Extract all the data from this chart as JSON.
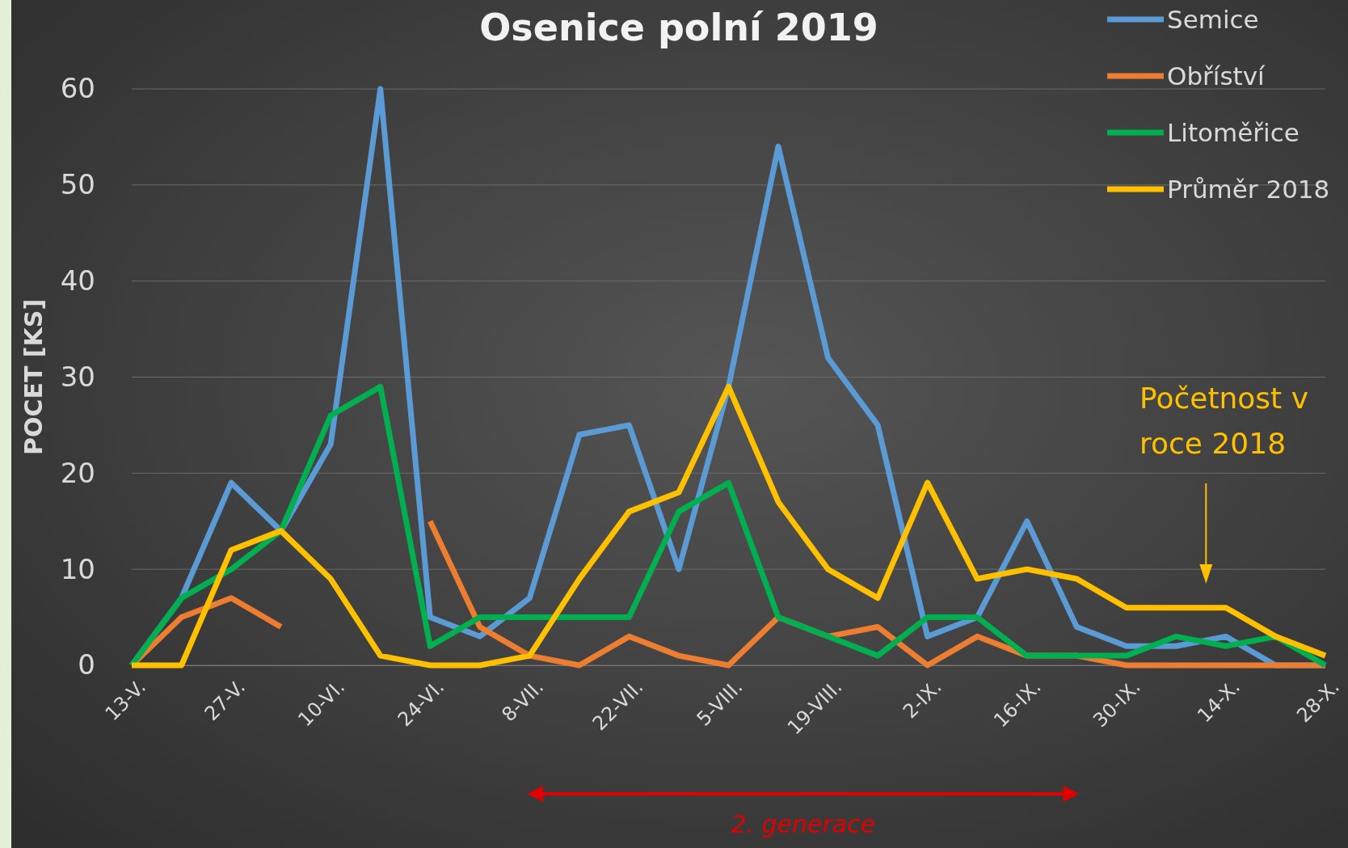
{
  "chart_data": {
    "type": "line",
    "title": "Osenice polní 2019",
    "ylabel": "POCET [KS]",
    "categories": [
      "13-V.",
      null,
      "27-V.",
      null,
      "10-VI.",
      null,
      "24-VI.",
      null,
      "8-VII.",
      null,
      "22-VII.",
      null,
      "5-VIII.",
      null,
      "19-VIII.",
      null,
      "2-IX.",
      null,
      "16-IX.",
      null,
      "30-IX.",
      null,
      "14-X.",
      null,
      "28-X."
    ],
    "series": [
      {
        "name": "Semice",
        "color": "#5b9bd5",
        "values": [
          0,
          7,
          19,
          14,
          23,
          60,
          5,
          3,
          7,
          24,
          25,
          10,
          29,
          54,
          32,
          25,
          3,
          5,
          15,
          4,
          2,
          2,
          3,
          0,
          0
        ]
      },
      {
        "name": "Obříství",
        "color": "#ed7d31",
        "values": [
          0,
          5,
          7,
          4,
          null,
          null,
          15,
          4,
          1,
          0,
          3,
          1,
          0,
          5,
          3,
          4,
          0,
          3,
          1,
          1,
          0,
          0,
          0,
          0,
          0
        ]
      },
      {
        "name": "Litoměřice",
        "color": "#00b050",
        "values": [
          0,
          7,
          10,
          14,
          26,
          29,
          2,
          5,
          5,
          5,
          5,
          16,
          19,
          5,
          3,
          1,
          5,
          5,
          1,
          1,
          1,
          3,
          2,
          3,
          0
        ]
      },
      {
        "name": "Průměr 2018",
        "color": "#ffc000",
        "values": [
          0,
          0,
          12,
          14,
          9,
          1,
          0,
          0,
          1,
          9,
          16,
          18,
          29,
          17,
          10,
          7,
          19,
          9,
          10,
          9,
          6,
          6,
          6,
          3,
          1
        ]
      }
    ],
    "ylim": [
      0,
      60
    ],
    "yticks": [
      0,
      10,
      20,
      30,
      40,
      50,
      60
    ],
    "grid": "y",
    "legend": "top right",
    "line_style": "solid",
    "marker": "none",
    "annotations": [
      "Početnost v roce 2018",
      "2. generace"
    ]
  }
}
